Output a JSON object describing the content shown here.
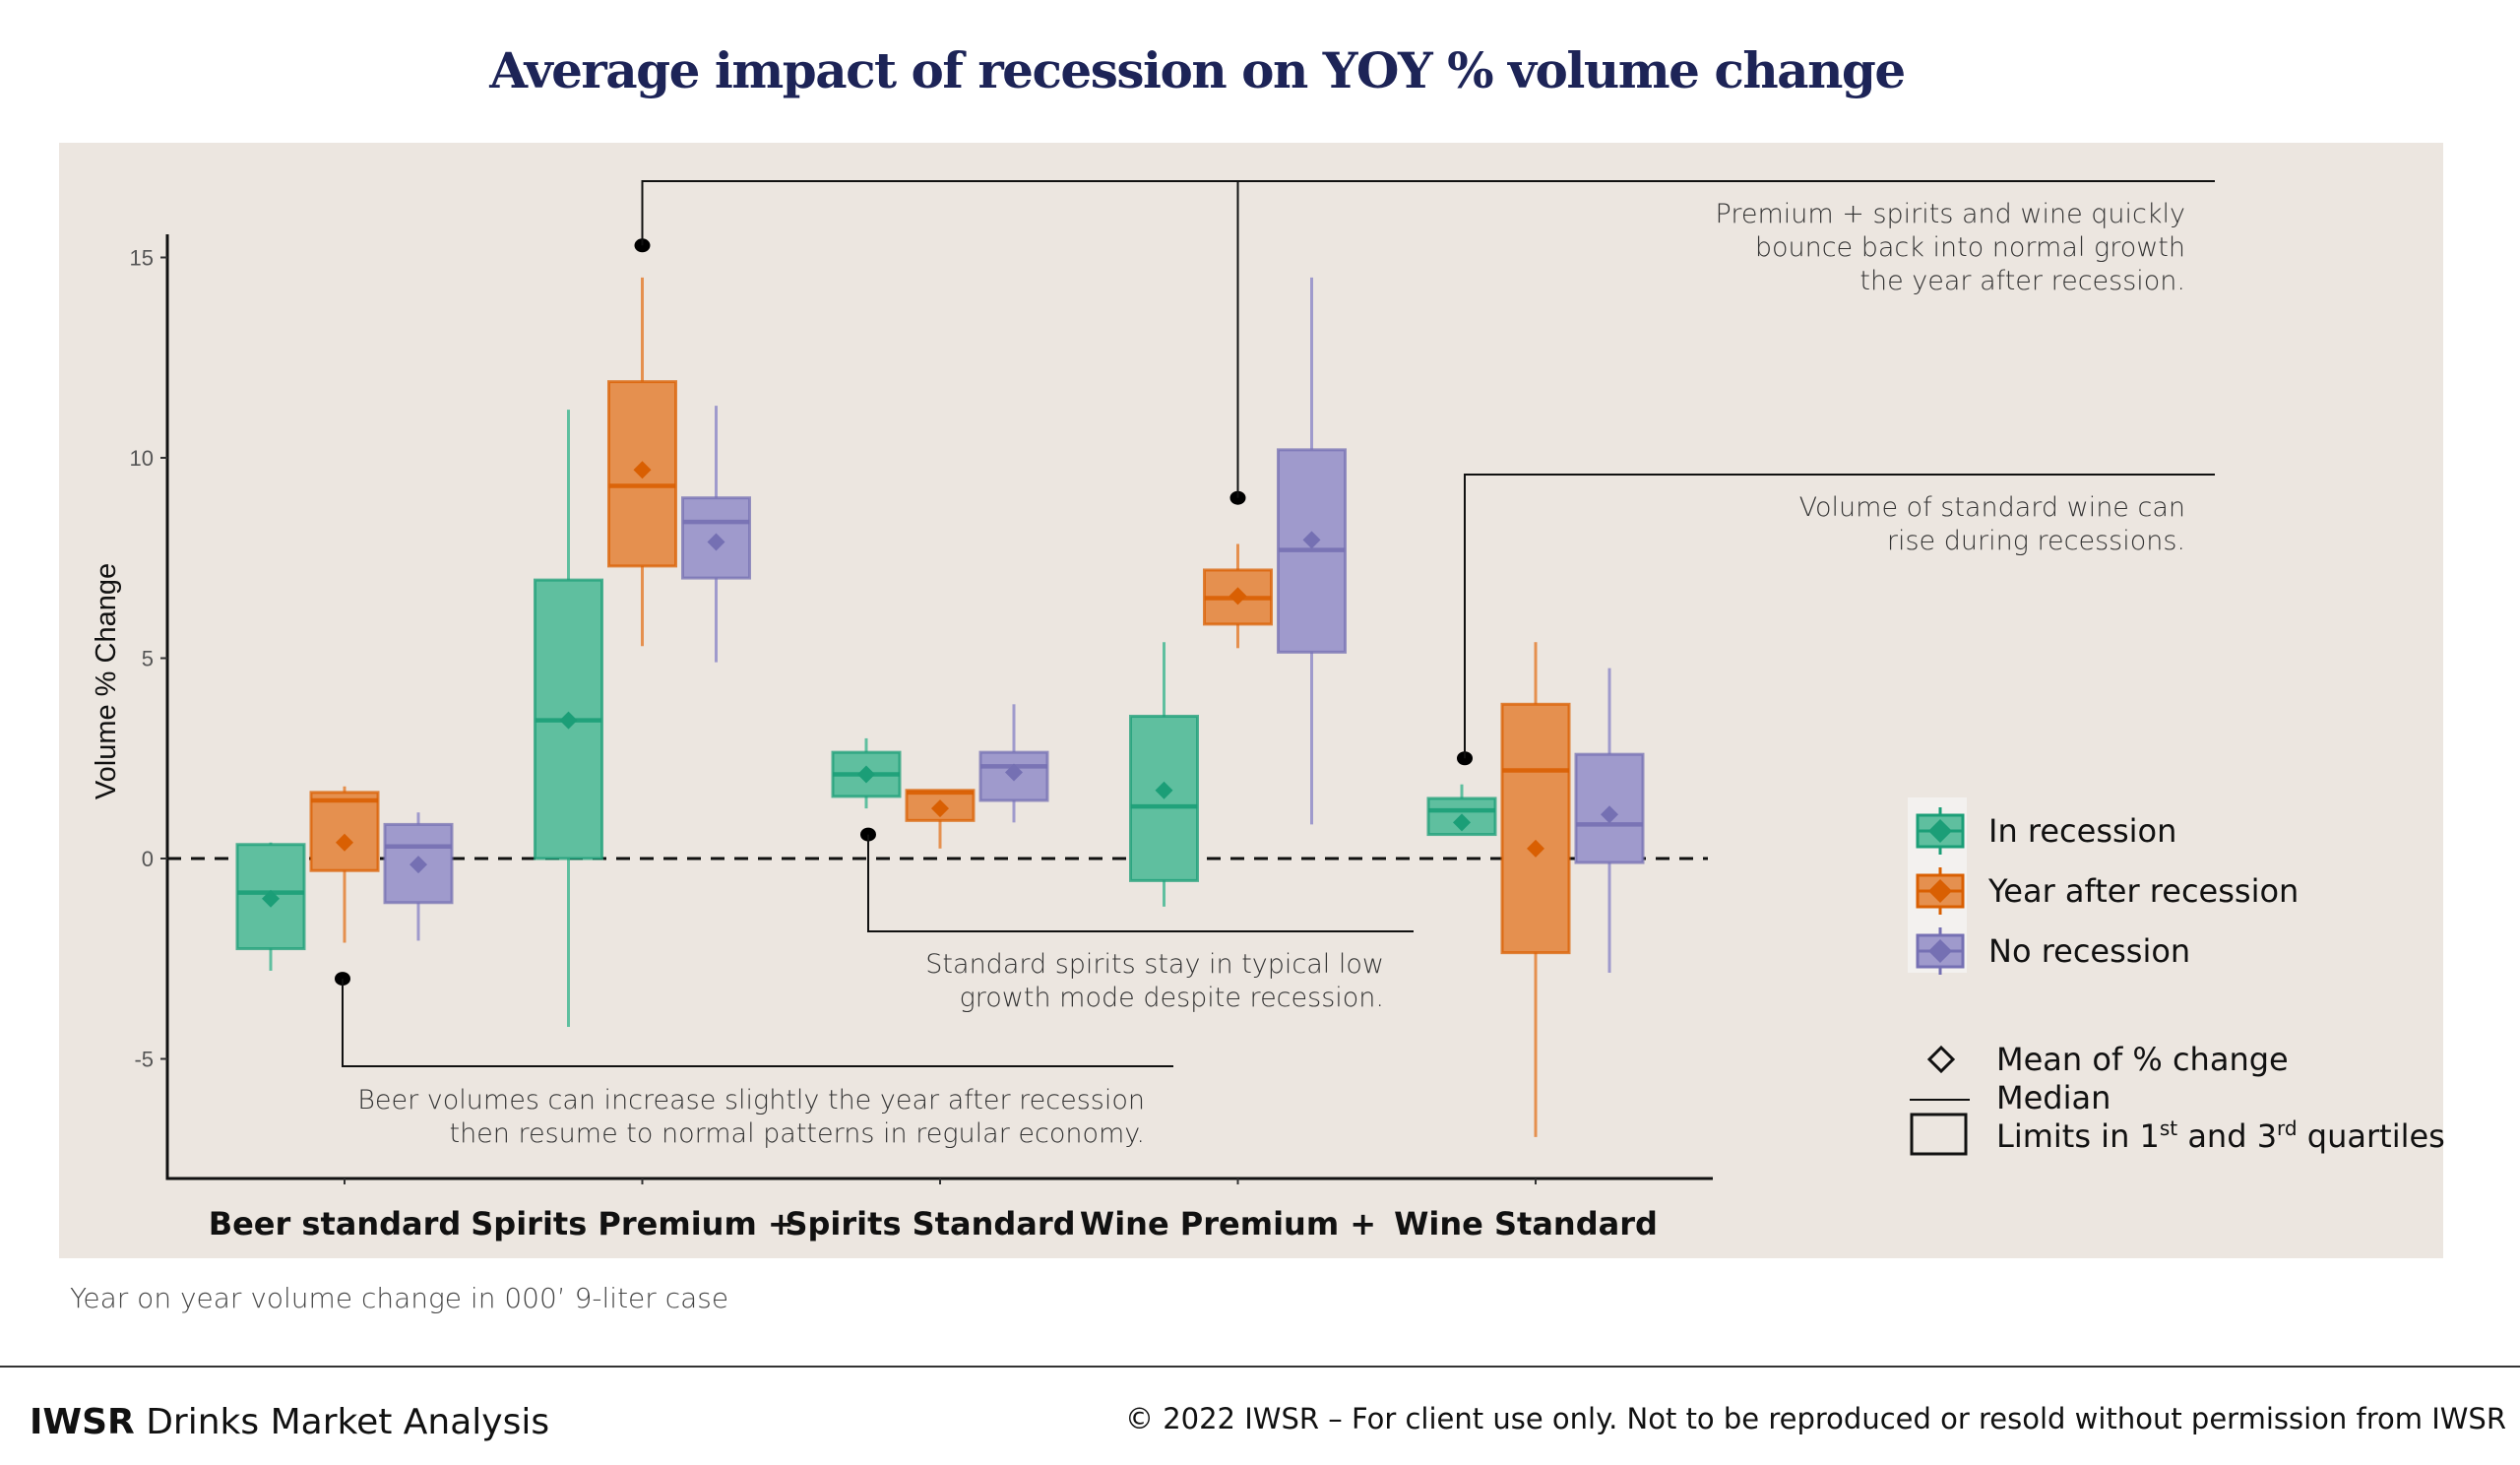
{
  "title": "Average impact of recession on YOY % volume change",
  "subnote": "Year on year volume change in 000’ 9-liter case",
  "footer": {
    "brand": "IWSR",
    "brand_suffix": " Drinks Market Analysis",
    "copyright": "© 2022 IWSR – For client use only. Not to be reproduced or resold without permission from IWSR"
  },
  "chart_data": {
    "type": "boxplot",
    "title": "Average impact of recession on YOY % volume change",
    "xlabel": "",
    "ylabel": "Volume % Change",
    "ylim": [
      -7.9,
      15.6
    ],
    "yticks": [
      15,
      10,
      5,
      0,
      -5
    ],
    "reference_line": {
      "y": 0,
      "style": "dashed"
    },
    "grid": false,
    "categories": [
      "Beer standard",
      "Spirits Premium +",
      "Spirits Standard",
      "Wine Premium +",
      "Wine Standard"
    ],
    "series": [
      {
        "name": "In recession",
        "color": "#1b9e77",
        "fill": "#5fbf9f",
        "boxes": [
          {
            "min": -2.8,
            "q1": -2.25,
            "median": -0.85,
            "q3": 0.35,
            "max": 0.4,
            "mean": -1.0
          },
          {
            "min": -4.2,
            "q1": 0.0,
            "median": 3.45,
            "q3": 6.95,
            "max": 11.2,
            "mean": 3.45
          },
          {
            "min": 1.25,
            "q1": 1.55,
            "median": 2.1,
            "q3": 2.65,
            "max": 3.0,
            "mean": 2.1
          },
          {
            "min": -1.2,
            "q1": -0.55,
            "median": 1.3,
            "q3": 3.55,
            "max": 5.4,
            "mean": 1.7
          },
          {
            "min": 0.6,
            "q1": 0.6,
            "median": 1.2,
            "q3": 1.5,
            "max": 1.85,
            "mean": 0.9
          }
        ]
      },
      {
        "name": "Year after recession",
        "color": "#d95f02",
        "fill": "#e5904f",
        "boxes": [
          {
            "min": -2.1,
            "q1": -0.3,
            "median": 1.45,
            "q3": 1.65,
            "max": 1.8,
            "mean": 0.4
          },
          {
            "min": 5.3,
            "q1": 7.3,
            "median": 9.3,
            "q3": 11.9,
            "max": 14.5,
            "mean": 9.7
          },
          {
            "min": 0.25,
            "q1": 0.95,
            "median": 1.65,
            "q3": 1.7,
            "max": 1.7,
            "mean": 1.25
          },
          {
            "min": 5.25,
            "q1": 5.85,
            "median": 6.5,
            "q3": 7.2,
            "max": 7.85,
            "mean": 6.55
          },
          {
            "min": -6.95,
            "q1": -2.35,
            "median": 2.2,
            "q3": 3.85,
            "max": 5.4,
            "mean": 0.25
          }
        ]
      },
      {
        "name": "No recession",
        "color": "#7570b3",
        "fill": "#9f9acc",
        "boxes": [
          {
            "min": -2.05,
            "q1": -1.1,
            "median": 0.3,
            "q3": 0.85,
            "max": 1.15,
            "mean": -0.15
          },
          {
            "min": 4.9,
            "q1": 7.0,
            "median": 8.4,
            "q3": 9.0,
            "max": 11.3,
            "mean": 7.9
          },
          {
            "min": 0.9,
            "q1": 1.45,
            "median": 2.3,
            "q3": 2.65,
            "max": 3.85,
            "mean": 2.15
          },
          {
            "min": 0.85,
            "q1": 5.15,
            "median": 7.7,
            "q3": 10.2,
            "max": 14.5,
            "mean": 7.95
          },
          {
            "min": -2.85,
            "q1": -0.1,
            "median": 0.85,
            "q3": 2.6,
            "max": 4.75,
            "mean": 1.1
          }
        ]
      }
    ],
    "legend": {
      "placement": "right",
      "series_labels": [
        "In recession",
        "Year after recession",
        "No recession"
      ],
      "key": [
        {
          "symbol": "diamond",
          "label": "Mean of % change"
        },
        {
          "symbol": "line",
          "label": "Median"
        },
        {
          "symbol": "box",
          "label": "Limits in 1st and 3rd quartiles"
        }
      ]
    },
    "annotations": [
      {
        "id": "premium",
        "lines": [
          "Premium + spirits and wine quickly",
          "bounce back into normal growth",
          "the year after recession."
        ],
        "points_to": [
          {
            "category": "Spirits Premium +",
            "y": 15.3
          },
          {
            "category": "Wine Premium +",
            "y": 9.0
          }
        ]
      },
      {
        "id": "std-wine",
        "lines": [
          "Volume of standard wine can",
          "rise during recessions."
        ],
        "points_to": [
          {
            "category": "Wine Standard",
            "y": 2.5
          }
        ]
      },
      {
        "id": "std-spirits",
        "lines": [
          "Standard spirits stay in typical low",
          "growth mode despite recession."
        ],
        "points_to": [
          {
            "category": "Spirits Standard",
            "y": 0.6
          }
        ]
      },
      {
        "id": "beer",
        "lines": [
          "Beer volumes can increase slightly the year after recession",
          "then resume to normal patterns in regular economy."
        ],
        "points_to": [
          {
            "category": "Beer standard",
            "y": -3.0
          }
        ]
      }
    ]
  }
}
